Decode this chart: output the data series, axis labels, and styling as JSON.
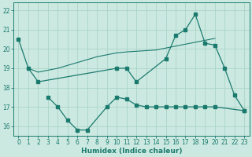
{
  "xlabel": "Humidex (Indice chaleur)",
  "background_color": "#cce9e1",
  "grid_color": "#aad4c8",
  "line_color": "#1a7a6e",
  "xlim": [
    -0.5,
    23.5
  ],
  "ylim": [
    15.5,
    22.4
  ],
  "xticks": [
    0,
    1,
    2,
    3,
    4,
    5,
    6,
    7,
    8,
    9,
    10,
    11,
    12,
    13,
    14,
    15,
    16,
    17,
    18,
    19,
    20,
    21,
    22,
    23
  ],
  "yticks": [
    16,
    17,
    18,
    19,
    20,
    21,
    22
  ],
  "line1_x": [
    0,
    1,
    2,
    10,
    11,
    12,
    15,
    16,
    17,
    18,
    19,
    20,
    21,
    22,
    23
  ],
  "line1_y": [
    20.5,
    19.0,
    18.3,
    19.0,
    19.0,
    18.3,
    19.5,
    20.7,
    21.0,
    21.8,
    20.3,
    20.2,
    19.0,
    17.6,
    16.8
  ],
  "line2_x": [
    3,
    4,
    5,
    6,
    7,
    9,
    10,
    11,
    12,
    13,
    14,
    15,
    16,
    17,
    18,
    19,
    20,
    23
  ],
  "line2_y": [
    17.5,
    17.0,
    16.3,
    15.8,
    15.8,
    17.0,
    17.5,
    17.4,
    17.1,
    17.0,
    17.0,
    17.0,
    17.0,
    17.0,
    17.0,
    17.0,
    17.0,
    16.8
  ],
  "trend_x": [
    1,
    2,
    3,
    4,
    5,
    6,
    7,
    8,
    9,
    10,
    11,
    14,
    15,
    16,
    17,
    18,
    19,
    20
  ],
  "trend_y": [
    19.0,
    18.8,
    18.9,
    19.0,
    19.15,
    19.3,
    19.45,
    19.6,
    19.7,
    19.8,
    19.85,
    19.95,
    20.05,
    20.15,
    20.25,
    20.35,
    20.45,
    20.55
  ]
}
